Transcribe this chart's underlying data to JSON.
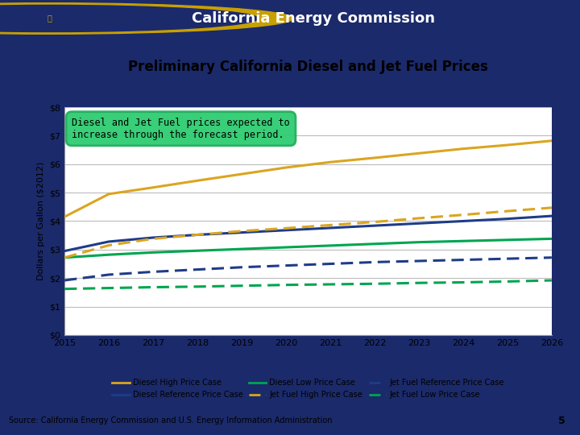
{
  "title": "Preliminary California Diesel and Jet Fuel Prices",
  "header": "California Energy Commission",
  "ylabel": "Dollars per Gallon ($2012)",
  "source_text": "Source: California Energy Commission and U.S. Energy Information Administration",
  "page_num": "5",
  "annotation": "Diesel and Jet Fuel prices expected to\nincrease through the forecast period.",
  "years": [
    2015,
    2016,
    2017,
    2018,
    2019,
    2020,
    2021,
    2022,
    2023,
    2024,
    2025,
    2026
  ],
  "diesel_high": [
    4.15,
    4.95,
    5.18,
    5.42,
    5.65,
    5.88,
    6.07,
    6.22,
    6.38,
    6.54,
    6.67,
    6.82
  ],
  "diesel_ref": [
    2.95,
    3.28,
    3.42,
    3.52,
    3.6,
    3.68,
    3.76,
    3.84,
    3.92,
    4.0,
    4.08,
    4.18
  ],
  "diesel_low": [
    2.72,
    2.82,
    2.9,
    2.96,
    3.02,
    3.08,
    3.14,
    3.2,
    3.26,
    3.3,
    3.34,
    3.38
  ],
  "jet_high": [
    2.72,
    3.15,
    3.38,
    3.52,
    3.65,
    3.75,
    3.86,
    3.97,
    4.1,
    4.22,
    4.35,
    4.47
  ],
  "jet_ref": [
    1.92,
    2.12,
    2.22,
    2.3,
    2.38,
    2.44,
    2.5,
    2.56,
    2.6,
    2.64,
    2.68,
    2.72
  ],
  "jet_low": [
    1.62,
    1.65,
    1.68,
    1.7,
    1.73,
    1.76,
    1.78,
    1.8,
    1.83,
    1.85,
    1.88,
    1.92
  ],
  "color_diesel_high": "#DAA520",
  "color_diesel_ref": "#1F3C88",
  "color_diesel_low": "#00A550",
  "color_jet_high": "#DAA520",
  "color_jet_ref": "#1F3C88",
  "color_jet_low": "#00A550",
  "header_bg": "#1B2A6B",
  "header_text_color": "#FFFFFF",
  "chart_bg": "#FFFFFF",
  "outer_bg": "#1B2A6B",
  "inner_bg": "#FFFFFF",
  "ylim": [
    0,
    8
  ],
  "yticks": [
    0,
    1,
    2,
    3,
    4,
    5,
    6,
    7,
    8
  ],
  "ytick_labels": [
    "$0",
    "$1",
    "$2",
    "$3",
    "$4",
    "$5",
    "$6",
    "$7",
    "$8"
  ],
  "annotation_bg": "#2ECC71",
  "annotation_border": "#27AE60",
  "grid_color": "#BBBBBB",
  "title_fontsize": 12,
  "header_fontsize": 13,
  "tick_fontsize": 8,
  "ylabel_fontsize": 8
}
